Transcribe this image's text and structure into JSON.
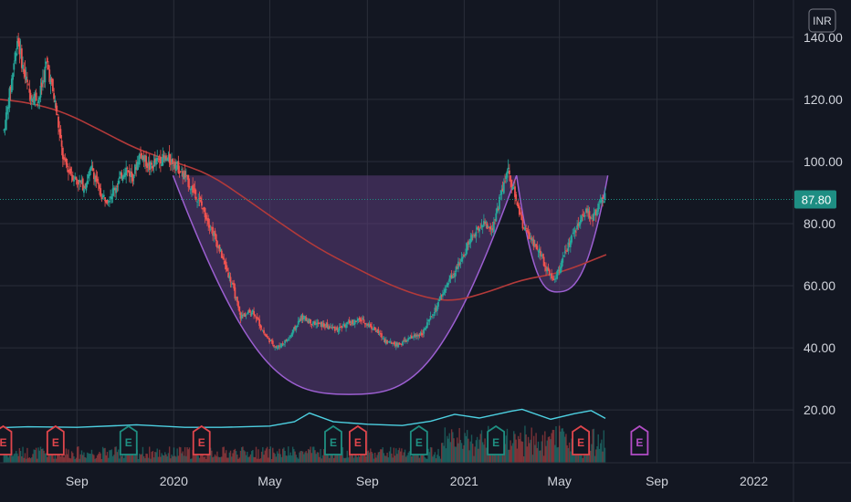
{
  "currency": "INR",
  "colors": {
    "background": "#131722",
    "grid": "#2a2e39",
    "axis_text": "#d1d4dc",
    "up": "#26a69a",
    "down": "#ef5350",
    "moving_average": "#b33a3a",
    "pattern_fill": "#5b3d7a",
    "pattern_stroke": "#9c5fd1",
    "volume_line": "#4dd0e1",
    "last_price_bg": "#1e8e83",
    "earnings_red": "#e0464c",
    "earnings_green": "#1f8f82",
    "earnings_purple": "#b34dc6"
  },
  "chart_data": {
    "type": "candlestick",
    "title": "",
    "currency": "INR",
    "last_price": "87.80",
    "y_ticks": [
      {
        "value": 140,
        "label": "140.00"
      },
      {
        "value": 120,
        "label": "120.00"
      },
      {
        "value": 100,
        "label": "100.00"
      },
      {
        "value": 80,
        "label": "80.00"
      },
      {
        "value": 60,
        "label": "60.00"
      },
      {
        "value": 40,
        "label": "40.00"
      },
      {
        "value": 20,
        "label": "20.00"
      }
    ],
    "x_ticks": [
      {
        "date": "2019-09-01",
        "label": "Sep"
      },
      {
        "date": "2020-01-01",
        "label": "2020"
      },
      {
        "date": "2020-05-01",
        "label": "May"
      },
      {
        "date": "2020-09-01",
        "label": "Sep"
      },
      {
        "date": "2021-01-01",
        "label": "2021"
      },
      {
        "date": "2021-05-01",
        "label": "May"
      },
      {
        "date": "2021-09-01",
        "label": "Sep"
      },
      {
        "date": "2022-01-01",
        "label": "2022"
      }
    ],
    "x_range": [
      "2019-05-27",
      "2022-02-20"
    ],
    "y_range": [
      3,
      152
    ],
    "price_anchors": [
      [
        "2019-06-01",
        110
      ],
      [
        "2019-06-10",
        125
      ],
      [
        "2019-06-18",
        140
      ],
      [
        "2019-06-25",
        130
      ],
      [
        "2019-07-03",
        122
      ],
      [
        "2019-07-15",
        120
      ],
      [
        "2019-07-25",
        132
      ],
      [
        "2019-08-05",
        118
      ],
      [
        "2019-08-15",
        100
      ],
      [
        "2019-08-28",
        95
      ],
      [
        "2019-09-10",
        92
      ],
      [
        "2019-09-20",
        98
      ],
      [
        "2019-10-01",
        89
      ],
      [
        "2019-10-10",
        88
      ],
      [
        "2019-10-20",
        92
      ],
      [
        "2019-11-01",
        98
      ],
      [
        "2019-11-10",
        95
      ],
      [
        "2019-11-20",
        103
      ],
      [
        "2019-12-01",
        98
      ],
      [
        "2019-12-15",
        101
      ],
      [
        "2020-01-01",
        100
      ],
      [
        "2020-01-15",
        95
      ],
      [
        "2020-02-01",
        88
      ],
      [
        "2020-02-15",
        80
      ],
      [
        "2020-03-01",
        70
      ],
      [
        "2020-03-15",
        60
      ],
      [
        "2020-03-25",
        50
      ],
      [
        "2020-04-10",
        52
      ],
      [
        "2020-04-25",
        44
      ],
      [
        "2020-05-10",
        40
      ],
      [
        "2020-05-25",
        43
      ],
      [
        "2020-06-10",
        50
      ],
      [
        "2020-06-25",
        48
      ],
      [
        "2020-07-10",
        47
      ],
      [
        "2020-07-25",
        46
      ],
      [
        "2020-08-10",
        48
      ],
      [
        "2020-08-25",
        49
      ],
      [
        "2020-09-10",
        46
      ],
      [
        "2020-09-25",
        42
      ],
      [
        "2020-10-10",
        41
      ],
      [
        "2020-10-25",
        43
      ],
      [
        "2020-11-10",
        45
      ],
      [
        "2020-11-25",
        52
      ],
      [
        "2020-12-10",
        60
      ],
      [
        "2020-12-25",
        67
      ],
      [
        "2021-01-10",
        75
      ],
      [
        "2021-01-25",
        80
      ],
      [
        "2021-02-05",
        78
      ],
      [
        "2021-02-15",
        88
      ],
      [
        "2021-02-25",
        98
      ],
      [
        "2021-03-05",
        90
      ],
      [
        "2021-03-15",
        80
      ],
      [
        "2021-03-25",
        75
      ],
      [
        "2021-04-05",
        72
      ],
      [
        "2021-04-15",
        65
      ],
      [
        "2021-04-25",
        62
      ],
      [
        "2021-05-05",
        68
      ],
      [
        "2021-05-15",
        75
      ],
      [
        "2021-05-25",
        80
      ],
      [
        "2021-06-05",
        84
      ],
      [
        "2021-06-12",
        82
      ],
      [
        "2021-06-20",
        86
      ],
      [
        "2021-06-28",
        88.5
      ]
    ],
    "moving_average": [
      [
        "2019-05-27",
        120
      ],
      [
        "2019-07-01",
        119
      ],
      [
        "2019-08-15",
        116
      ],
      [
        "2019-10-01",
        110
      ],
      [
        "2019-11-15",
        104
      ],
      [
        "2019-12-31",
        100
      ],
      [
        "2020-02-15",
        96
      ],
      [
        "2020-04-01",
        88
      ],
      [
        "2020-05-15",
        80
      ],
      [
        "2020-07-01",
        72
      ],
      [
        "2020-08-15",
        66
      ],
      [
        "2020-10-01",
        60
      ],
      [
        "2020-11-15",
        56
      ],
      [
        "2020-12-20",
        55
      ],
      [
        "2021-02-01",
        58
      ],
      [
        "2021-03-15",
        62
      ],
      [
        "2021-05-01",
        64
      ],
      [
        "2021-06-29",
        70
      ]
    ],
    "cup_handle_pattern": {
      "rim_price": 95.5,
      "rim_start": "2019-12-31",
      "rim_end": "2021-07-01",
      "cup_bottom_price": 25,
      "cup_bottom_date": "2020-08-10",
      "cup_end": "2021-03-08",
      "handle_bottom_price": 58,
      "handle_bottom_date": "2021-04-28"
    },
    "volume_line": [
      [
        "2019-05-27",
        14.3
      ],
      [
        "2019-07-01",
        14.6
      ],
      [
        "2019-09-01",
        14.4
      ],
      [
        "2019-11-15",
        15.2
      ],
      [
        "2020-01-15",
        14.4
      ],
      [
        "2020-03-01",
        14.4
      ],
      [
        "2020-05-01",
        14.8
      ],
      [
        "2020-06-01",
        16.2
      ],
      [
        "2020-06-20",
        19.0
      ],
      [
        "2020-07-20",
        16.2
      ],
      [
        "2020-09-01",
        15.4
      ],
      [
        "2020-10-15",
        15.0
      ],
      [
        "2020-11-20",
        16.4
      ],
      [
        "2020-12-20",
        18.6
      ],
      [
        "2021-01-20",
        17.4
      ],
      [
        "2021-03-01",
        19.6
      ],
      [
        "2021-03-15",
        20.2
      ],
      [
        "2021-04-20",
        17.0
      ],
      [
        "2021-05-20",
        18.8
      ],
      [
        "2021-06-10",
        19.8
      ],
      [
        "2021-06-28",
        17.3
      ]
    ],
    "earnings_markers": [
      {
        "date": "2019-05-31",
        "label": "E",
        "color": "red"
      },
      {
        "date": "2019-08-05",
        "label": "E",
        "color": "red"
      },
      {
        "date": "2019-11-05",
        "label": "E",
        "color": "green"
      },
      {
        "date": "2020-02-05",
        "label": "E",
        "color": "red"
      },
      {
        "date": "2020-07-20",
        "label": "E",
        "color": "green"
      },
      {
        "date": "2020-08-20",
        "label": "E",
        "color": "red"
      },
      {
        "date": "2020-11-05",
        "label": "E",
        "color": "green"
      },
      {
        "date": "2021-02-10",
        "label": "E",
        "color": "green"
      },
      {
        "date": "2021-05-28",
        "label": "E",
        "color": "red"
      },
      {
        "date": "2021-08-10",
        "label": "E",
        "color": "purple"
      }
    ]
  }
}
